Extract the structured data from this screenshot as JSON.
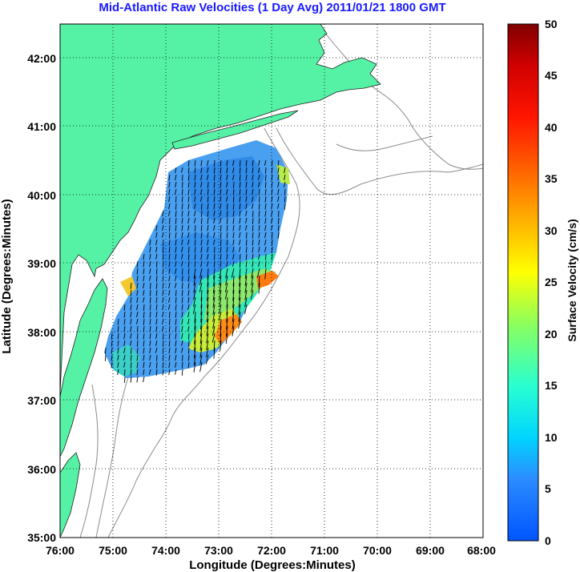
{
  "title": "Mid-Atlantic Raw Velocities (1 Day Avg) 2011/01/21 1800 GMT",
  "x_axis": {
    "label": "Longitude (Degrees:Minutes)",
    "ticks": [
      "76:00",
      "75:00",
      "74:00",
      "73:00",
      "72:00",
      "71:00",
      "70:00",
      "69:00",
      "68:00"
    ]
  },
  "y_axis": {
    "label": "Latitude (Degrees:Minutes)",
    "ticks": [
      "42:00",
      "41:00",
      "40:00",
      "39:00",
      "38:00",
      "37:00",
      "36:00",
      "35:00"
    ]
  },
  "colorbar": {
    "label": "Surface Velocity (cm/s)",
    "ticks": [
      "50",
      "45",
      "40",
      "35",
      "30",
      "25",
      "20",
      "15",
      "10",
      "5",
      "0"
    ],
    "range": [
      0,
      50
    ],
    "colormap": "jet"
  },
  "map": {
    "lon_range": [
      -76,
      -68
    ],
    "lat_range": [
      35,
      42.5
    ],
    "grid": true,
    "land_color": "#55f2a6",
    "ocean_color": "#ffffff",
    "isobath_color": "#888888"
  }
}
